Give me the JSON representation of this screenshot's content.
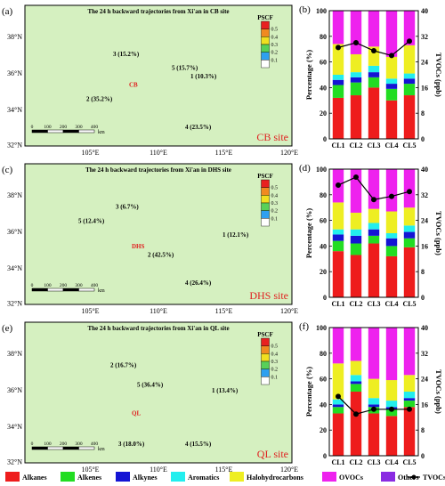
{
  "colors": {
    "Alkanes": "#ee1c1c",
    "Alkenes": "#22dd22",
    "Alkynes": "#1414d4",
    "Aromatics": "#22eeee",
    "Halohydrocarbons": "#eeee22",
    "OVOCs": "#ee22ee",
    "Others": "#8a2be2",
    "TVOCs": "#000000",
    "land": "#d5f0c0",
    "redtext": "#e02020"
  },
  "maps": [
    {
      "panel": "(a)",
      "title": "The 24 h backward trajectories from Xi'an in CB site",
      "site_label": "CB site",
      "site_tag": "CB",
      "legend_title": "PSCF",
      "legend_ticks": [
        "0.5",
        "0.4",
        "0.3",
        "0.2",
        "0.1"
      ],
      "lat_labels": [
        "38°N",
        "36°N",
        "34°N",
        "32°N"
      ],
      "lon_labels": [
        "105°E",
        "110°E",
        "115°E",
        "120°E"
      ],
      "scalebar": {
        "ticks": [
          "0",
          "100",
          "200",
          "300",
          "400"
        ],
        "unit": "km"
      },
      "clusters": [
        "1 (10.3%)",
        "2 (35.2%)",
        "3 (15.2%)",
        "4 (23.5%)",
        "5 (15.7%)"
      ]
    },
    {
      "panel": "(c)",
      "title": "The 24 h backward trajectories from Xi'an in DHS site",
      "site_label": "DHS site",
      "site_tag": "DHS",
      "legend_title": "PSCF",
      "legend_ticks": [
        "0.5",
        "0.4",
        "0.3",
        "0.2",
        "0.1"
      ],
      "lat_labels": [
        "38°N",
        "36°N",
        "34°N",
        "32°N"
      ],
      "lon_labels": [
        "105°E",
        "110°E",
        "115°E",
        "120°E"
      ],
      "scalebar": {
        "ticks": [
          "0",
          "100",
          "200",
          "300",
          "400"
        ],
        "unit": "km"
      },
      "clusters": [
        "1 (12.1%)",
        "2 (42.5%)",
        "3 (6.7%)",
        "4 (26.4%)",
        "5 (12.4%)"
      ]
    },
    {
      "panel": "(e)",
      "title": "The 24 h backward trajectories from Xi'an in QL site",
      "site_label": "QL site",
      "site_tag": "QL",
      "legend_title": "PSCF",
      "legend_ticks": [
        "0.5",
        "0.4",
        "0.3",
        "0.2",
        "0.1"
      ],
      "lat_labels": [
        "38°N",
        "36°N",
        "34°N",
        "32°N"
      ],
      "lon_labels": [
        "105°E",
        "110°E",
        "115°E",
        "120°E"
      ],
      "scalebar": {
        "ticks": [
          "0",
          "100",
          "200",
          "300",
          "400"
        ],
        "unit": "km"
      },
      "clusters": [
        "1 (13.4%)",
        "2 (16.7%)",
        "3 (18.0%)",
        "4 (15.5%)",
        "5 (36.4%)"
      ]
    }
  ],
  "chart_data": [
    {
      "panel": "(b)",
      "type": "bar",
      "stacked": true,
      "categories": [
        "CL1",
        "CL2",
        "CL3",
        "CL4",
        "CL5"
      ],
      "ylabel": "Percentage (%)",
      "ylim": [
        0,
        100
      ],
      "yticks": [
        0,
        20,
        40,
        60,
        80,
        100
      ],
      "y2label": "TVOCs (ppb)",
      "y2lim": [
        0,
        40
      ],
      "y2ticks": [
        0,
        8,
        16,
        24,
        32,
        40
      ],
      "series": [
        {
          "name": "Alkanes",
          "values": [
            32,
            34,
            40,
            30,
            34
          ]
        },
        {
          "name": "Alkenes",
          "values": [
            10,
            10,
            8,
            9,
            9
          ]
        },
        {
          "name": "Alkynes",
          "values": [
            4,
            4,
            4,
            4,
            4
          ]
        },
        {
          "name": "Aromatics",
          "values": [
            4,
            4,
            5,
            4,
            4
          ]
        },
        {
          "name": "Halohydrocarbons",
          "values": [
            24,
            14,
            15,
            17,
            22
          ]
        },
        {
          "name": "OVOCs",
          "values": [
            26,
            34,
            28,
            36,
            27
          ]
        },
        {
          "name": "Others",
          "values": [
            0,
            0,
            0,
            0,
            0
          ]
        }
      ],
      "line": {
        "name": "TVOCs",
        "values": [
          28.5,
          30.0,
          27.5,
          26.0,
          30.5
        ]
      }
    },
    {
      "panel": "(d)",
      "type": "bar",
      "stacked": true,
      "categories": [
        "CL1",
        "CL2",
        "CL3",
        "CL4",
        "CL5"
      ],
      "ylabel": "Percentage (%)",
      "ylim": [
        0,
        100
      ],
      "yticks": [
        0,
        20,
        40,
        60,
        80,
        100
      ],
      "y2label": "TVOCs (ppb)",
      "y2lim": [
        0,
        40
      ],
      "y2ticks": [
        0,
        8,
        16,
        24,
        32,
        40
      ],
      "series": [
        {
          "name": "Alkanes",
          "values": [
            36,
            33,
            42,
            32,
            39
          ]
        },
        {
          "name": "Alkenes",
          "values": [
            8,
            9,
            6,
            8,
            7
          ]
        },
        {
          "name": "Alkynes",
          "values": [
            5,
            6,
            5,
            6,
            5
          ]
        },
        {
          "name": "Aromatics",
          "values": [
            4,
            5,
            5,
            4,
            5
          ]
        },
        {
          "name": "Halohydrocarbons",
          "values": [
            21,
            13,
            11,
            17,
            14
          ]
        },
        {
          "name": "OVOCs",
          "values": [
            26,
            34,
            31,
            33,
            30
          ]
        },
        {
          "name": "Others",
          "values": [
            0,
            0,
            0,
            0,
            0
          ]
        }
      ],
      "line": {
        "name": "TVOCs",
        "values": [
          35.0,
          37.5,
          30.5,
          31.5,
          33.0
        ]
      }
    },
    {
      "panel": "(f)",
      "type": "bar",
      "stacked": true,
      "categories": [
        "CL1",
        "CL2",
        "CL3",
        "CL4",
        "CL5"
      ],
      "ylabel": "Percentage (%)",
      "ylim": [
        0,
        100
      ],
      "yticks": [
        0,
        20,
        40,
        60,
        80,
        100
      ],
      "y2label": "TVOCs (ppb)",
      "y2lim": [
        0,
        40
      ],
      "y2ticks": [
        0,
        8,
        16,
        24,
        32,
        40
      ],
      "series": [
        {
          "name": "Alkanes",
          "values": [
            33,
            50,
            33,
            31,
            38
          ]
        },
        {
          "name": "Alkenes",
          "values": [
            5,
            6,
            5,
            5,
            5
          ]
        },
        {
          "name": "Alkynes",
          "values": [
            2,
            2,
            2,
            2,
            2
          ]
        },
        {
          "name": "Aromatics",
          "values": [
            4,
            5,
            5,
            5,
            5
          ]
        },
        {
          "name": "Halohydrocarbons",
          "values": [
            28,
            11,
            15,
            16,
            13
          ]
        },
        {
          "name": "OVOCs",
          "values": [
            28,
            26,
            40,
            41,
            37
          ]
        },
        {
          "name": "Others",
          "values": [
            0,
            0,
            0,
            0,
            0
          ]
        }
      ],
      "line": {
        "name": "TVOCs",
        "values": [
          18.5,
          13.0,
          14.5,
          14.5,
          14.5
        ]
      }
    }
  ],
  "legend": [
    "Alkanes",
    "Alkenes",
    "Alkynes",
    "Aromatics",
    "Halohydrocarbons",
    "OVOCs",
    "Others",
    "TVOCs"
  ]
}
